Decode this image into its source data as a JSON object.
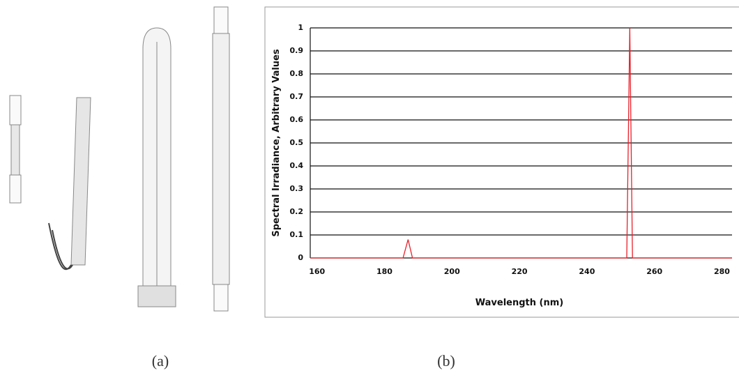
{
  "chart_data": {
    "type": "line",
    "x_label": "Wavelength (nm)",
    "y_label": "Spectral Irradiance, Arbitrary Values",
    "x": [
      158,
      185.5,
      187,
      188.3,
      251.8,
      252.7,
      253.5,
      283
    ],
    "values": [
      0,
      0,
      0.08,
      0,
      0,
      1,
      0,
      0
    ],
    "color": "#e8202a",
    "xlim": [
      158,
      283
    ],
    "xticks": [
      160,
      180,
      200,
      220,
      240,
      260,
      280
    ],
    "ylim": [
      0,
      1
    ],
    "yticks": [
      0,
      0.1,
      0.2,
      0.3,
      0.4,
      0.5,
      0.6,
      0.7,
      0.8,
      0.9,
      1
    ],
    "grid": true
  },
  "captions": [
    "(a)",
    "(b)"
  ]
}
